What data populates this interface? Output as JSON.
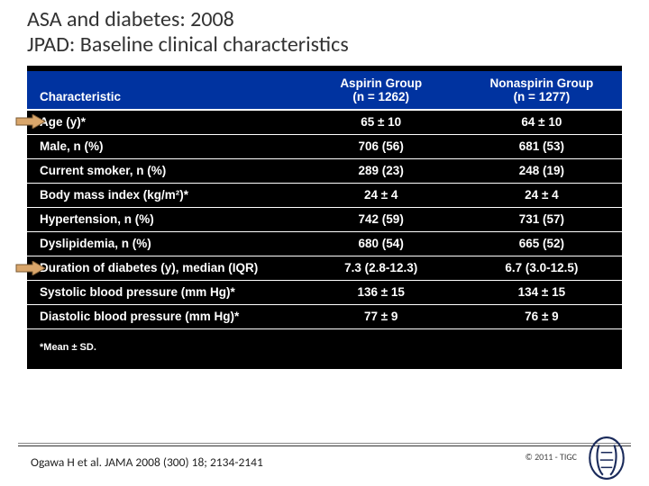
{
  "title_line1": "ASA and diabetes: 2008",
  "title_line2": "JPAD: Baseline clinical characteristics",
  "table": {
    "header": {
      "char_label": "Characteristic",
      "col1_top": "Aspirin Group",
      "col1_sub": "(n = 1262)",
      "col2_top": "Nonaspirin Group",
      "col2_sub": "(n = 1277)"
    },
    "rows": [
      {
        "label": "Age (y)*",
        "c1": "65 ± 10",
        "c2": "64 ± 10",
        "arrow": true
      },
      {
        "label": "Male, n (%)",
        "c1": "706 (56)",
        "c2": "681 (53)",
        "arrow": false
      },
      {
        "label": "Current smoker, n (%)",
        "c1": "289 (23)",
        "c2": "248 (19)",
        "arrow": false
      },
      {
        "label": "Body mass index (kg/m²)*",
        "c1": "24 ± 4",
        "c2": "24 ± 4",
        "arrow": false
      },
      {
        "label": "Hypertension, n (%)",
        "c1": "742 (59)",
        "c2": "731 (57)",
        "arrow": false
      },
      {
        "label": "Dyslipidemia, n (%)",
        "c1": "680 (54)",
        "c2": "665 (52)",
        "arrow": false
      },
      {
        "label": "Duration of diabetes (y), median (IQR)",
        "c1": "7.3 (2.8-12.3)",
        "c2": "6.7 (3.0-12.5)",
        "arrow": true
      },
      {
        "label": "Systolic blood pressure (mm Hg)*",
        "c1": "136 ± 15",
        "c2": "134 ± 15",
        "arrow": false
      },
      {
        "label": "Diastolic blood pressure (mm Hg)*",
        "c1": "77 ± 9",
        "c2": "76 ± 9",
        "arrow": false
      }
    ],
    "footnote": "*Mean ± SD.",
    "colors": {
      "header_bg": "#0033a0",
      "body_bg": "#000000",
      "text": "#ffffff",
      "grid": "#ffffff"
    },
    "col_widths": [
      "46%",
      "27%",
      "27%"
    ],
    "font_size_pt": 13.5
  },
  "citation": "Ogawa H et al. JAMA 2008 (300) 18; 2134-2141",
  "copyright": "© 2011 - TIGC",
  "arrow_style": {
    "fill": "#d9a66b",
    "stroke": "#7a5a33"
  }
}
